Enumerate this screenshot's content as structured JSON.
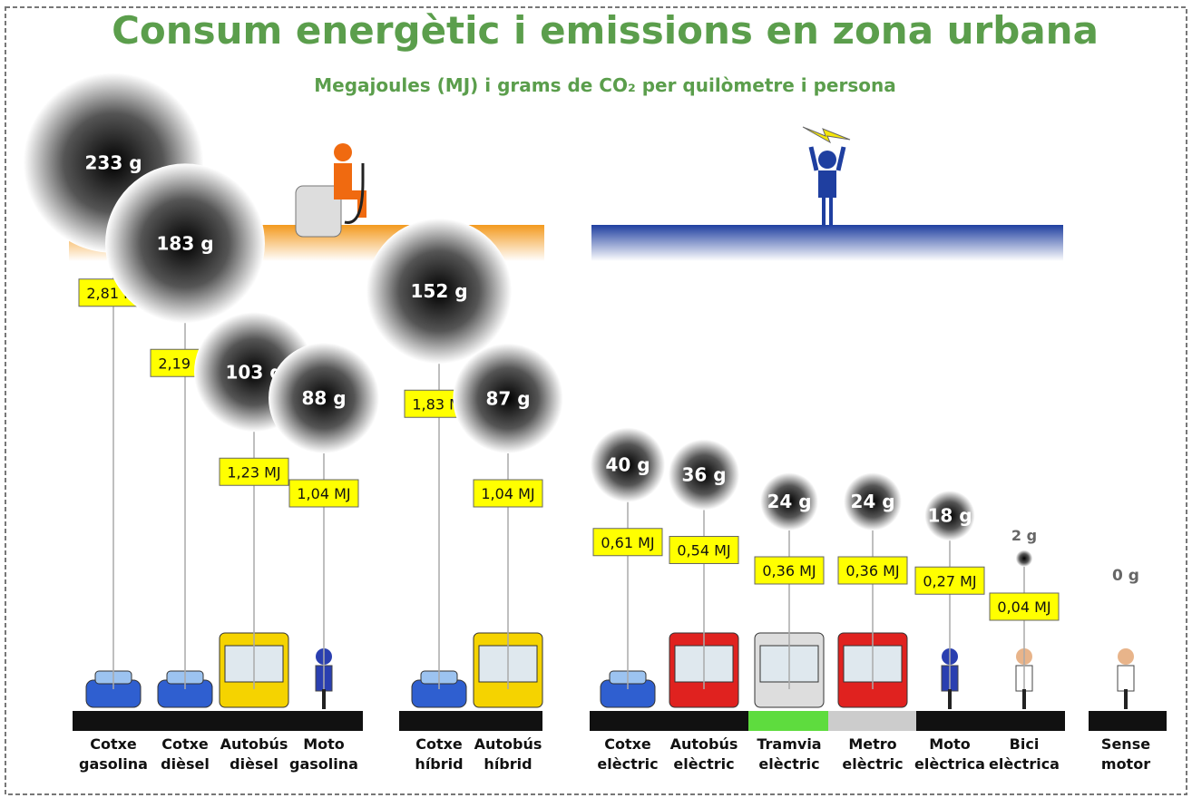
{
  "chart_data": {
    "type": "bubble",
    "title": "Consum energètic i emissions en zona urbana",
    "subtitle": "Megajoules (MJ) i grams de CO₂ per quilòmetre i persona",
    "categories": [
      "Cotxe gasolina",
      "Cotxe dièsel",
      "Autobús dièsel",
      "Moto gasolina",
      "Cotxe híbrid",
      "Autobús híbrid",
      "Cotxe elèctric",
      "Autobús elèctric",
      "Tramvia elèctric",
      "Metro elèctric",
      "Moto elèctrica",
      "Bici elèctrica",
      "Sense motor"
    ],
    "values": [
      2.81,
      2.19,
      1.23,
      1.04,
      1.83,
      1.04,
      0.61,
      0.54,
      0.36,
      0.36,
      0.27,
      0.04,
      null
    ],
    "value_labels": [
      "2,81 MJ",
      "2,19 MJ",
      "1,23 MJ",
      "1,04 MJ",
      "1,83 MJ",
      "1,04 MJ",
      "0,61 MJ",
      "0,54 MJ",
      "0,36 MJ",
      "0,36 MJ",
      "0,27 MJ",
      "0,04 MJ",
      null
    ],
    "sizes": [
      233,
      183,
      103,
      88,
      152,
      87,
      40,
      36,
      24,
      24,
      18,
      2,
      0
    ],
    "size_labels": [
      "233 g",
      "183 g",
      "103 g",
      "88 g",
      "152 g",
      "87 g",
      "40 g",
      "36 g",
      "24 g",
      "24 g",
      "18 g",
      "2 g",
      "0 g"
    ],
    "label_color": "#ffff00"
  }
}
